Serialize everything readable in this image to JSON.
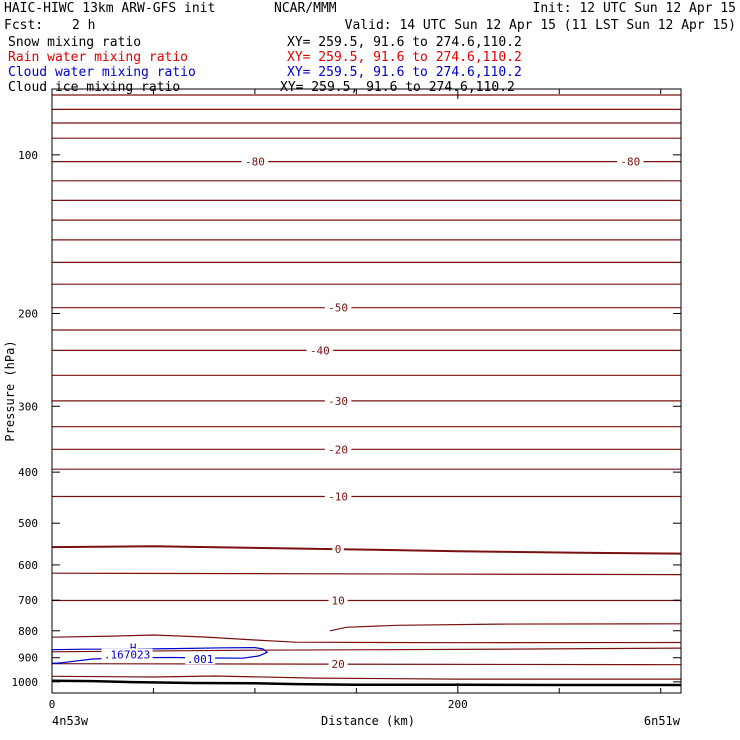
{
  "header": {
    "model": "HAIC-HIWC 13km ARW-GFS init",
    "org": "NCAR/MMM",
    "init": "Init: 12 UTC Sun 12 Apr 15",
    "fcst_label": "Fcst:",
    "fcst_value": "2 h",
    "valid": "Valid: 14 UTC Sun 12 Apr 15 (11 LST Sun 12 Apr 15)"
  },
  "fields": [
    {
      "name": "Snow mixing ratio",
      "xy": "XY= 259.5, 91.6 to 274.6,110.2",
      "color": "#000000"
    },
    {
      "name": "Rain water mixing ratio",
      "xy": "XY= 259.5, 91.6 to 274.6,110.2",
      "color": "#e00000"
    },
    {
      "name": "Cloud water mixing ratio",
      "xy": "XY= 259.5, 91.6 to 274.6,110.2",
      "color": "#0000cc"
    },
    {
      "name": "Cloud ice mixing ratio",
      "xy": "XY= 259.5, 91.6 to 274.6,110.2",
      "color": "#000000"
    }
  ],
  "colors": {
    "temperature_contour": "#7a1010",
    "cloud_water_contour": "#0000cc",
    "terrain": "#000000",
    "axes": "#000000"
  },
  "chart_data": {
    "type": "line",
    "xlabel": "Distance (km)",
    "ylabel": "Pressure (hPa)",
    "xlim": [
      0,
      310
    ],
    "ylim": [
      1050,
      75
    ],
    "y_scale": "log",
    "x_ticks": [
      {
        "value": 0,
        "label": "0"
      },
      {
        "value": 200,
        "label": "200"
      }
    ],
    "x_minor_ticks": [
      50,
      100,
      150,
      250,
      300
    ],
    "y_ticks": [
      {
        "value": 100,
        "label": "100"
      },
      {
        "value": 200,
        "label": "200"
      },
      {
        "value": 300,
        "label": "300"
      },
      {
        "value": 400,
        "label": "400"
      },
      {
        "value": 500,
        "label": "500"
      },
      {
        "value": 600,
        "label": "600"
      },
      {
        "value": 700,
        "label": "700"
      },
      {
        "value": 800,
        "label": "800"
      },
      {
        "value": 900,
        "label": "900"
      },
      {
        "value": 1000,
        "label": "1000"
      }
    ],
    "x_endpoint_labels": {
      "left": "4n53w",
      "right": "6n51w"
    },
    "isotherms": [
      {
        "p": [
          [
            0,
            77
          ],
          [
            310,
            77
          ]
        ]
      },
      {
        "p": [
          [
            0,
            82
          ],
          [
            310,
            82
          ]
        ]
      },
      {
        "p": [
          [
            0,
            87
          ],
          [
            310,
            87
          ]
        ]
      },
      {
        "p": [
          [
            0,
            93
          ],
          [
            310,
            93
          ]
        ]
      },
      {
        "p": [
          [
            0,
            103
          ],
          [
            310,
            103
          ]
        ],
        "label": "-80",
        "label_x": [
          100,
          285
        ]
      },
      {
        "p": [
          [
            0,
            112
          ],
          [
            310,
            112
          ]
        ]
      },
      {
        "p": [
          [
            0,
            122
          ],
          [
            310,
            122
          ]
        ]
      },
      {
        "p": [
          [
            0,
            133
          ],
          [
            310,
            133
          ]
        ]
      },
      {
        "p": [
          [
            0,
            145
          ],
          [
            310,
            145
          ]
        ]
      },
      {
        "p": [
          [
            0,
            160
          ],
          [
            310,
            160
          ]
        ]
      },
      {
        "p": [
          [
            0,
            176
          ],
          [
            310,
            176
          ]
        ]
      },
      {
        "p": [
          [
            0,
            195
          ],
          [
            310,
            195
          ]
        ],
        "label": "-50",
        "label_x": [
          141
        ]
      },
      {
        "p": [
          [
            0,
            215
          ],
          [
            310,
            215
          ]
        ]
      },
      {
        "p": [
          [
            0,
            235
          ],
          [
            310,
            235
          ]
        ],
        "label": "-40",
        "label_x": [
          132
        ]
      },
      {
        "p": [
          [
            0,
            262
          ],
          [
            310,
            262
          ]
        ]
      },
      {
        "p": [
          [
            0,
            293
          ],
          [
            310,
            293
          ]
        ],
        "label": "-30",
        "label_x": [
          141
        ]
      },
      {
        "p": [
          [
            0,
            328
          ],
          [
            310,
            328
          ]
        ]
      },
      {
        "p": [
          [
            0,
            362
          ],
          [
            310,
            362
          ]
        ],
        "label": "-20",
        "label_x": [
          141
        ]
      },
      {
        "p": [
          [
            0,
            395
          ],
          [
            310,
            395
          ]
        ]
      },
      {
        "p": [
          [
            0,
            445
          ],
          [
            310,
            445
          ]
        ],
        "label": "-10",
        "label_x": [
          141
        ]
      },
      {
        "p": [
          [
            0,
            555
          ],
          [
            50,
            553
          ],
          [
            100,
            557
          ],
          [
            150,
            561
          ],
          [
            200,
            565
          ],
          [
            260,
            569
          ],
          [
            310,
            571
          ]
        ],
        "label": "0",
        "label_x": [
          141
        ],
        "bold": true
      },
      {
        "p": [
          [
            0,
            622
          ],
          [
            310,
            626
          ]
        ]
      },
      {
        "p": [
          [
            0,
            701
          ],
          [
            310,
            701
          ]
        ],
        "label": "10",
        "label_x": [
          141
        ]
      },
      {
        "p": [
          [
            137,
            800
          ],
          [
            145,
            788
          ],
          [
            170,
            781
          ],
          [
            220,
            777
          ],
          [
            310,
            776
          ]
        ]
      },
      {
        "p": [
          [
            0,
            823
          ],
          [
            30,
            819
          ],
          [
            50,
            815
          ],
          [
            75,
            822
          ],
          [
            100,
            833
          ],
          [
            120,
            841
          ],
          [
            200,
            843
          ],
          [
            310,
            842
          ]
        ]
      },
      {
        "p": [
          [
            0,
            877
          ],
          [
            100,
            871
          ],
          [
            200,
            868
          ],
          [
            310,
            863
          ]
        ]
      },
      {
        "p": [
          [
            0,
            924
          ],
          [
            310,
            928
          ]
        ],
        "label": "20",
        "label_x": [
          141
        ]
      },
      {
        "p": [
          [
            0,
            976
          ],
          [
            50,
            979
          ],
          [
            80,
            975
          ],
          [
            130,
            984
          ],
          [
            200,
            988
          ],
          [
            310,
            988
          ]
        ]
      }
    ],
    "cloud_water": [
      {
        "level": ".001",
        "closed": true,
        "p": [
          [
            0,
            869
          ],
          [
            15,
            867
          ],
          [
            35,
            867
          ],
          [
            60,
            865
          ],
          [
            85,
            862
          ],
          [
            100,
            861
          ],
          [
            104,
            866
          ],
          [
            106,
            879
          ],
          [
            102,
            893
          ],
          [
            94,
            902
          ],
          [
            80,
            901
          ],
          [
            60,
            899
          ],
          [
            40,
            900
          ],
          [
            20,
            905
          ],
          [
            5,
            920
          ],
          [
            0,
            923
          ]
        ]
      },
      {
        "level": ".001",
        "closed": false,
        "p": [
          [
            0,
            923
          ],
          [
            5,
            921
          ]
        ]
      }
    ],
    "cloud_water_labels": [
      {
        "text": "H",
        "x": 40,
        "p": 860
      },
      {
        "text": ".167023",
        "x": 37,
        "p": 888
      },
      {
        "text": ".001",
        "x": 73,
        "p": 906
      }
    ],
    "terrain": {
      "p": [
        [
          0,
          995
        ],
        [
          20,
          997
        ],
        [
          40,
          1001
        ],
        [
          70,
          1005
        ],
        [
          100,
          1006
        ],
        [
          120,
          1010
        ],
        [
          150,
          1013
        ],
        [
          200,
          1013
        ],
        [
          250,
          1014
        ],
        [
          310,
          1014
        ]
      ]
    }
  }
}
